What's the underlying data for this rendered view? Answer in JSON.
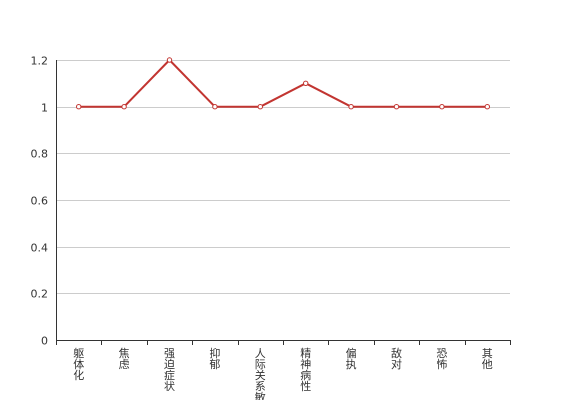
{
  "chart_data": {
    "type": "line",
    "title": "",
    "xlabel": "",
    "ylabel": "",
    "categories": [
      "躯体化",
      "焦虑",
      "强迫症状",
      "抑郁",
      "人际关系敏感",
      "精神病性",
      "偏执",
      "敌对",
      "恐怖",
      "其他"
    ],
    "series": [
      {
        "values": [
          1,
          1,
          1.2,
          1,
          1,
          1.1,
          1,
          1,
          1,
          1
        ],
        "color": "#c23531"
      }
    ],
    "ylim": [
      0,
      1.2
    ],
    "yticks": [
      {
        "value": 0,
        "label": "0"
      },
      {
        "value": 0.2,
        "label": "0.2"
      },
      {
        "value": 0.4,
        "label": "0.4"
      },
      {
        "value": 0.6,
        "label": "0.6"
      },
      {
        "value": 0.8,
        "label": "0.8"
      },
      {
        "value": 1,
        "label": "1"
      },
      {
        "value": 1.2,
        "label": "1.2"
      }
    ],
    "grid": true,
    "legend": "none"
  }
}
